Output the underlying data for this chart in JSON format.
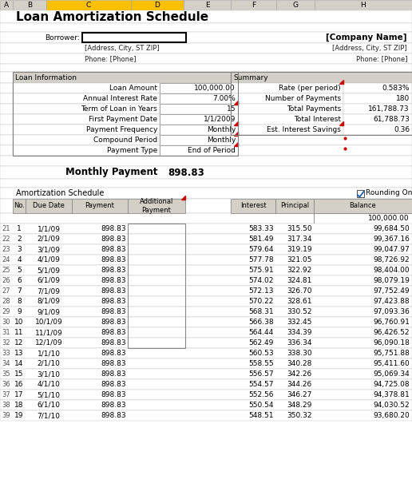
{
  "title": "Loan Amortization Schedule",
  "borrower_label": "Borrower:",
  "company_name": "[Company Name]",
  "address": "[Address, City, ST ZIP]",
  "phone": "Phone: [Phone]",
  "loan_info_label": "Loan Information",
  "loan_fields": [
    [
      "Loan Amount",
      "100,000.00"
    ],
    [
      "Annual Interest Rate",
      "7.00%"
    ],
    [
      "Term of Loan in Years",
      "15"
    ],
    [
      "First Payment Date",
      "1/1/2009"
    ],
    [
      "Payment Frequency",
      "Monthly"
    ],
    [
      "Compound Period",
      "Monthly"
    ],
    [
      "Payment Type",
      "End of Period"
    ]
  ],
  "summary_label": "Summary",
  "summary_fields": [
    [
      "Rate (per period)",
      "0.583%"
    ],
    [
      "Number of Payments",
      "180"
    ],
    [
      "Total Payments",
      "161,788.73"
    ],
    [
      "Total Interest",
      "61,788.73"
    ],
    [
      "Est. Interest Savings",
      "0.36"
    ]
  ],
  "monthly_payment_label": "Monthly Payment",
  "monthly_payment_value": "898.83",
  "amort_label": "Amortization Schedule",
  "rounding_label": "Rounding On",
  "col_headers": [
    "No.",
    "Due Date",
    "Payment",
    "Additional\nPayment",
    "Interest",
    "Principal",
    "Balance"
  ],
  "col_letters": [
    "A",
    "B",
    "C",
    "D",
    "E",
    "F",
    "G",
    "H"
  ],
  "row0_balance": "100,000.00",
  "amort_rows": [
    [
      1,
      "1/1/09",
      "898.83",
      "",
      "583.33",
      "315.50",
      "99,684.50"
    ],
    [
      2,
      "2/1/09",
      "898.83",
      "",
      "581.49",
      "317.34",
      "99,367.16"
    ],
    [
      3,
      "3/1/09",
      "898.83",
      "",
      "579.64",
      "319.19",
      "99,047.97"
    ],
    [
      4,
      "4/1/09",
      "898.83",
      "",
      "577.78",
      "321.05",
      "98,726.92"
    ],
    [
      5,
      "5/1/09",
      "898.83",
      "",
      "575.91",
      "322.92",
      "98,404.00"
    ],
    [
      6,
      "6/1/09",
      "898.83",
      "",
      "574.02",
      "324.81",
      "98,079.19"
    ],
    [
      7,
      "7/1/09",
      "898.83",
      "",
      "572.13",
      "326.70",
      "97,752.49"
    ],
    [
      8,
      "8/1/09",
      "898.83",
      "",
      "570.22",
      "328.61",
      "97,423.88"
    ],
    [
      9,
      "9/1/09",
      "898.83",
      "",
      "568.31",
      "330.52",
      "97,093.36"
    ],
    [
      10,
      "10/1/09",
      "898.83",
      "",
      "566.38",
      "332.45",
      "96,760.91"
    ],
    [
      11,
      "11/1/09",
      "898.83",
      "",
      "564.44",
      "334.39",
      "96,426.52"
    ],
    [
      12,
      "12/1/09",
      "898.83",
      "",
      "562.49",
      "336.34",
      "96,090.18"
    ],
    [
      13,
      "1/1/10",
      "898.83",
      "",
      "560.53",
      "338.30",
      "95,751.88"
    ],
    [
      14,
      "2/1/10",
      "898.83",
      "",
      "558.55",
      "340.28",
      "95,411.60"
    ],
    [
      15,
      "3/1/10",
      "898.83",
      "",
      "556.57",
      "342.26",
      "95,069.34"
    ],
    [
      16,
      "4/1/10",
      "898.83",
      "",
      "554.57",
      "344.26",
      "94,725.08"
    ],
    [
      17,
      "5/1/10",
      "898.83",
      "",
      "552.56",
      "346.27",
      "94,378.81"
    ],
    [
      18,
      "6/1/10",
      "898.83",
      "",
      "550.54",
      "348.29",
      "94,030.52"
    ],
    [
      19,
      "7/1/10",
      "898.83",
      "",
      "548.51",
      "350.32",
      "93,680.20"
    ]
  ],
  "header_bg": "#d4d0c8",
  "orange_col_bg": "#ffc000",
  "white": "#ffffff",
  "red_triangle_color": "#cc0000",
  "grid_color": "#c0c0c0",
  "font_size": 6.5,
  "title_font_size": 11
}
